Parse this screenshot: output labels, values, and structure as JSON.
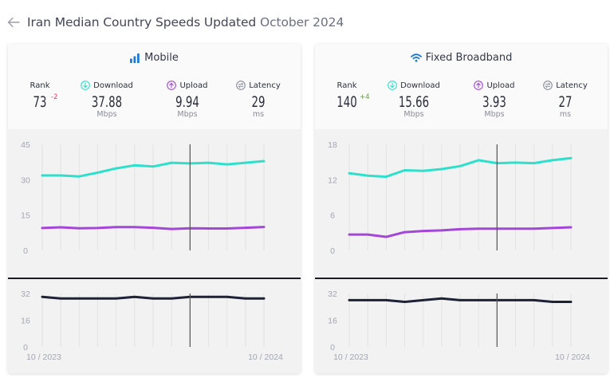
{
  "header": {
    "back_icon": "arrow-left-icon",
    "title": "Iran Median Country Speeds Updated",
    "updated": "October 2024"
  },
  "colors": {
    "download": "#2ee0cc",
    "upload": "#a447d8",
    "latency": "#1e2236",
    "accent": "#1e7bd6",
    "rank_down": "#e63c6b",
    "rank_up": "#5fa73a"
  },
  "panels": [
    {
      "id": "mobile",
      "title": "Mobile",
      "icon": "signal-bars-icon",
      "rank_label": "Rank",
      "rank": "73",
      "rank_change": "-2",
      "download_label": "Download",
      "download": "37.88",
      "download_unit": "Mbps",
      "upload_label": "Upload",
      "upload": "9.94",
      "upload_unit": "Mbps",
      "latency_label": "Latency",
      "latency": "29",
      "latency_unit": "ms"
    },
    {
      "id": "fixed",
      "title": "Fixed Broadband",
      "icon": "wifi-icon",
      "rank_label": "Rank",
      "rank": "140",
      "rank_change": "+4",
      "download_label": "Download",
      "download": "15.66",
      "download_unit": "Mbps",
      "upload_label": "Upload",
      "upload": "3.93",
      "upload_unit": "Mbps",
      "latency_label": "Latency",
      "latency": "27",
      "latency_unit": "ms"
    }
  ],
  "chart_data": [
    {
      "type": "line",
      "title": "Mobile speeds",
      "x": [
        "10/2023",
        "11/2023",
        "12/2023",
        "01/2024",
        "02/2024",
        "03/2024",
        "04/2024",
        "05/2024",
        "06/2024",
        "07/2024",
        "08/2024",
        "09/2024",
        "10/2024"
      ],
      "yticks": [
        "0",
        "15",
        "30",
        "45"
      ],
      "ylim": [
        0,
        45
      ],
      "grid": "vertical",
      "series": [
        {
          "name": "Download",
          "color": "#2ee0cc",
          "values": [
            31.8,
            31.8,
            31.4,
            33.0,
            34.8,
            36.1,
            35.6,
            37.2,
            36.9,
            37.2,
            36.5,
            37.2,
            37.88
          ]
        },
        {
          "name": "Upload",
          "color": "#a447d8",
          "values": [
            9.5,
            9.8,
            9.4,
            9.5,
            9.9,
            9.9,
            9.6,
            9.1,
            9.4,
            9.3,
            9.3,
            9.6,
            9.94
          ]
        }
      ],
      "cursor_index": 8
    },
    {
      "type": "line",
      "title": "Mobile latency",
      "x": [
        "10/2023",
        "11/2023",
        "12/2023",
        "01/2024",
        "02/2024",
        "03/2024",
        "04/2024",
        "05/2024",
        "06/2024",
        "07/2024",
        "08/2024",
        "09/2024",
        "10/2024"
      ],
      "x_labels": [
        "10 / 2023",
        "10 / 2024"
      ],
      "yticks": [
        "0",
        "16",
        "32"
      ],
      "ylim": [
        0,
        32
      ],
      "series": [
        {
          "name": "Latency",
          "color": "#1e2236",
          "values": [
            30,
            29,
            29,
            29,
            29,
            30,
            29,
            29,
            30,
            30,
            30,
            29,
            29
          ]
        }
      ],
      "cursor_index": 8
    },
    {
      "type": "line",
      "title": "Fixed Broadband speeds",
      "x": [
        "10/2023",
        "11/2023",
        "12/2023",
        "01/2024",
        "02/2024",
        "03/2024",
        "04/2024",
        "05/2024",
        "06/2024",
        "07/2024",
        "08/2024",
        "09/2024",
        "10/2024"
      ],
      "yticks": [
        "0",
        "6",
        "12",
        "18"
      ],
      "ylim": [
        0,
        18
      ],
      "grid": "vertical",
      "series": [
        {
          "name": "Download",
          "color": "#2ee0cc",
          "values": [
            13.1,
            12.7,
            12.5,
            13.6,
            13.5,
            13.8,
            14.3,
            15.3,
            14.8,
            14.9,
            14.8,
            15.3,
            15.66
          ]
        },
        {
          "name": "Upload",
          "color": "#a447d8",
          "values": [
            2.7,
            2.7,
            2.3,
            3.1,
            3.3,
            3.4,
            3.6,
            3.7,
            3.7,
            3.7,
            3.7,
            3.8,
            3.93
          ]
        }
      ],
      "cursor_index": 8
    },
    {
      "type": "line",
      "title": "Fixed Broadband latency",
      "x": [
        "10/2023",
        "11/2023",
        "12/2023",
        "01/2024",
        "02/2024",
        "03/2024",
        "04/2024",
        "05/2024",
        "06/2024",
        "07/2024",
        "08/2024",
        "09/2024",
        "10/2024"
      ],
      "x_labels": [
        "10 / 2023",
        "10 / 2024"
      ],
      "yticks": [
        "0",
        "16",
        "32"
      ],
      "ylim": [
        0,
        32
      ],
      "series": [
        {
          "name": "Latency",
          "color": "#1e2236",
          "values": [
            28,
            28,
            28,
            27,
            28,
            29,
            28,
            28,
            28,
            28,
            28,
            27,
            27
          ]
        }
      ],
      "cursor_index": 8
    }
  ]
}
